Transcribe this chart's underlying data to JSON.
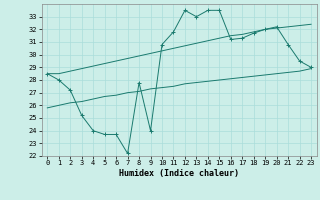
{
  "xlabel": "Humidex (Indice chaleur)",
  "background_color": "#cceee8",
  "grid_color": "#aaddda",
  "line_color": "#1a7a6e",
  "x_hours": [
    0,
    1,
    2,
    3,
    4,
    5,
    6,
    7,
    8,
    9,
    10,
    11,
    12,
    13,
    14,
    15,
    16,
    17,
    18,
    19,
    20,
    21,
    22,
    23
  ],
  "main_line": [
    28.5,
    28.0,
    27.2,
    25.2,
    24.0,
    23.7,
    23.7,
    22.2,
    27.8,
    24.0,
    30.8,
    31.8,
    33.5,
    33.0,
    33.5,
    33.5,
    31.2,
    31.3,
    31.7,
    32.0,
    32.2,
    30.8,
    29.5,
    29.0
  ],
  "upper_line": [
    28.5,
    28.5,
    28.7,
    28.9,
    29.1,
    29.3,
    29.5,
    29.7,
    29.9,
    30.1,
    30.3,
    30.5,
    30.7,
    30.9,
    31.1,
    31.3,
    31.5,
    31.6,
    31.8,
    32.0,
    32.1,
    32.2,
    32.3,
    32.4
  ],
  "lower_line": [
    25.8,
    26.0,
    26.2,
    26.3,
    26.5,
    26.7,
    26.8,
    27.0,
    27.1,
    27.3,
    27.4,
    27.5,
    27.7,
    27.8,
    27.9,
    28.0,
    28.1,
    28.2,
    28.3,
    28.4,
    28.5,
    28.6,
    28.7,
    28.9
  ],
  "ylim": [
    22,
    34
  ],
  "xlim": [
    -0.5,
    23.5
  ],
  "yticks": [
    22,
    23,
    24,
    25,
    26,
    27,
    28,
    29,
    30,
    31,
    32,
    33
  ],
  "xticks": [
    0,
    1,
    2,
    3,
    4,
    5,
    6,
    7,
    8,
    9,
    10,
    11,
    12,
    13,
    14,
    15,
    16,
    17,
    18,
    19,
    20,
    21,
    22,
    23
  ]
}
